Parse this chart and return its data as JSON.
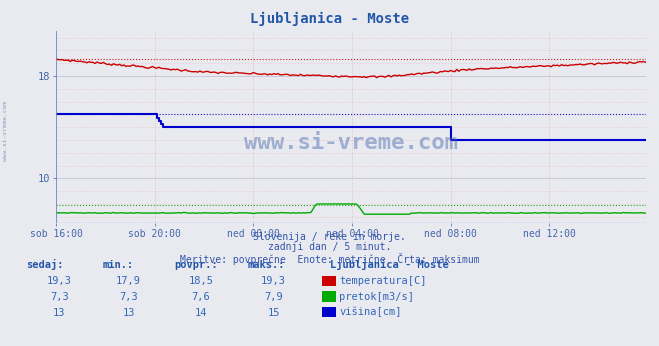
{
  "title": "Ljubljanica - Moste",
  "background_color": "#e8eaf0",
  "plot_bg_color": "#e8eaf0",
  "xlabel_ticks": [
    "sob 16:00",
    "sob 20:00",
    "ned 00:00",
    "ned 04:00",
    "ned 08:00",
    "ned 12:00"
  ],
  "y_ticks": [
    10,
    18
  ],
  "y_tick_labels": [
    "10",
    "18"
  ],
  "xlim": [
    0,
    287
  ],
  "ylim": [
    6.5,
    21.5
  ],
  "subtitle1": "Slovenija / reke in morje.",
  "subtitle2": "zadnji dan / 5 minut.",
  "subtitle3": "Meritve: povprečne  Enote: metrične  Črta: maksimum",
  "legend_title": "Ljubljanica - Moste",
  "legend_rows": [
    {
      "label": "temperatura[C]",
      "color": "#cc0000"
    },
    {
      "label": "pretok[m3/s]",
      "color": "#00aa00"
    },
    {
      "label": "višina[cm]",
      "color": "#0000cc"
    }
  ],
  "table_headers": [
    "sedaj:",
    "min.:",
    "povpr.:",
    "maks.:"
  ],
  "table_data": [
    [
      "19,3",
      "17,9",
      "18,5",
      "19,3"
    ],
    [
      "7,3",
      "7,3",
      "7,6",
      "7,9"
    ],
    [
      "13",
      "13",
      "14",
      "15"
    ]
  ],
  "watermark": "www.si-vreme.com",
  "side_text": "www.si-vreme.com",
  "temp_color": "#cc0000",
  "flow_color": "#00aa00",
  "height_color": "#0000cc",
  "grid_color_main": "#c8c8d8",
  "grid_color_dot": "#d8b8b8",
  "tick_color": "#4466aa",
  "temp_max": 19.3,
  "flow_max": 7.9,
  "height_max": 15,
  "tick_x_positions": [
    0,
    48,
    96,
    144,
    192,
    240
  ],
  "n_points": 288
}
